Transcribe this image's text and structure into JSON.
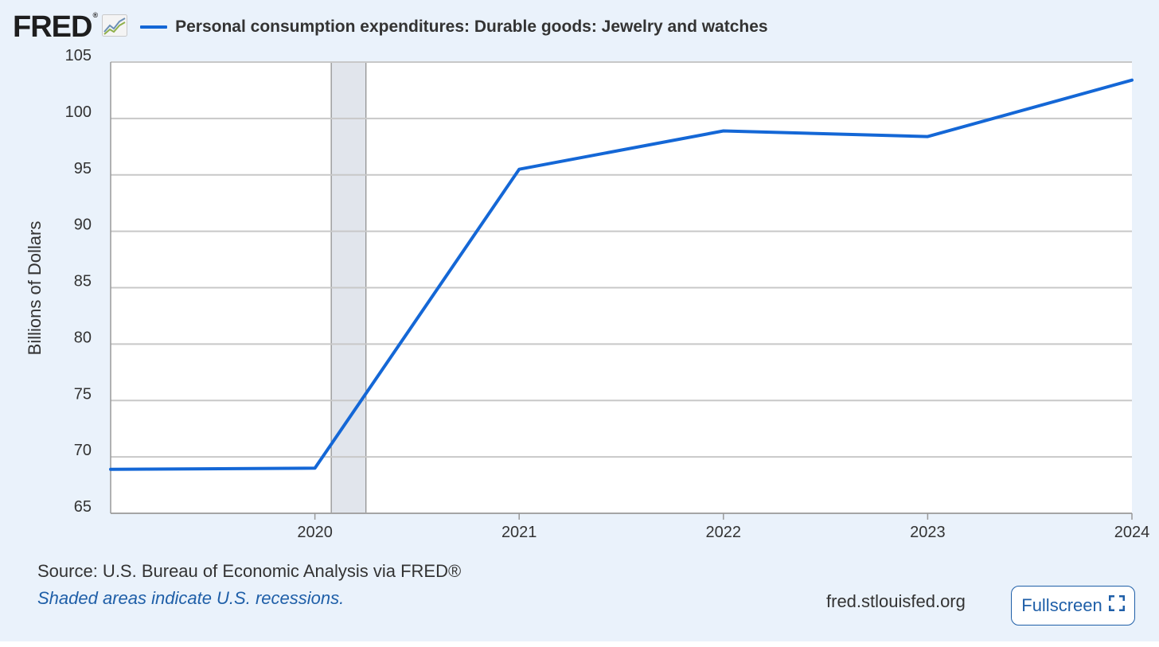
{
  "header": {
    "logo_text": "FRED",
    "logo_reg": "®",
    "series_title": "Personal consumption expenditures: Durable goods: Jewelry and watches"
  },
  "footer": {
    "source": "Source: U.S. Bureau of Economic Analysis via FRED®",
    "recession_note": "Shaded areas indicate U.S. recessions.",
    "site_url": "fred.stlouisfed.org",
    "fullscreen_label": "Fullscreen"
  },
  "colors": {
    "line": "#1467d6",
    "background": "#eaf2fb",
    "plot_background": "#ffffff",
    "grid": "#c8c8c8",
    "recession_shade": "#e1e5ec"
  },
  "icons": {
    "logo_chart": "trend-chart-icon",
    "fullscreen": "expand-icon"
  },
  "chart_data": {
    "type": "line",
    "title": "Personal consumption expenditures: Durable goods: Jewelry and watches",
    "xlabel": "",
    "ylabel": "Billions of Dollars",
    "xlim": [
      2019,
      2024
    ],
    "ylim": [
      65,
      105
    ],
    "yticks": [
      65,
      70,
      75,
      80,
      85,
      90,
      95,
      100,
      105
    ],
    "xticks": [
      2020,
      2021,
      2022,
      2023,
      2024
    ],
    "grid": true,
    "recessions": [
      {
        "start": 2020.08,
        "end": 2020.25
      }
    ],
    "series": [
      {
        "name": "Personal consumption expenditures: Durable goods: Jewelry and watches",
        "x": [
          2019,
          2020,
          2021,
          2022,
          2023,
          2024
        ],
        "values": [
          68.9,
          69.0,
          95.5,
          98.9,
          98.4,
          103.4
        ]
      }
    ]
  }
}
